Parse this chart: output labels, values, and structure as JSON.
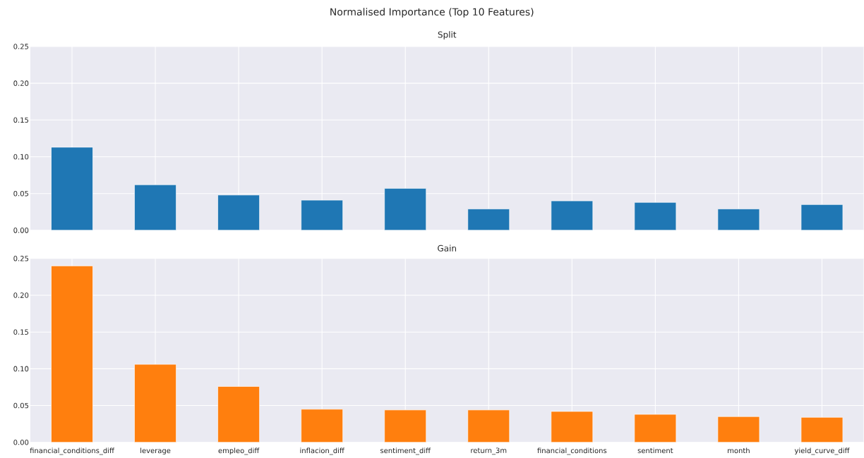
{
  "chart_data": [
    {
      "type": "bar",
      "title": "Split",
      "annotations": [
        "Normalised Importance (Top 10 Features)"
      ],
      "categories": [
        null,
        null,
        null,
        null,
        null,
        null,
        null,
        null,
        null,
        null
      ],
      "values": [
        0.113,
        0.062,
        0.048,
        0.041,
        0.057,
        0.029,
        0.04,
        0.038,
        0.029,
        0.035
      ],
      "color": "#1f77b4",
      "ylim": [
        0,
        0.25
      ],
      "yticks": [
        {
          "value": 0,
          "label": "0.00"
        },
        {
          "value": 0.05,
          "label": "0.05"
        },
        {
          "value": 0.1,
          "label": "0.10"
        },
        {
          "value": 0.15,
          "label": "0.15"
        },
        {
          "value": 0.2,
          "label": "0.20"
        },
        {
          "value": 0.25,
          "label": "0.25"
        }
      ],
      "grid": true,
      "tick_labels": "y"
    },
    {
      "type": "bar",
      "title": "Gain",
      "categories": [
        "financial_conditions_diff",
        "leverage",
        "empleo_diff",
        "inflacion_diff",
        "sentiment_diff",
        "return_3m",
        "financial_conditions",
        "sentiment",
        "month",
        "yield_curve_diff"
      ],
      "values": [
        0.24,
        0.106,
        0.076,
        0.045,
        0.044,
        0.044,
        0.042,
        0.038,
        0.035,
        0.034
      ],
      "color": "#ff7f0e",
      "ylim": [
        0,
        0.25
      ],
      "yticks": [
        {
          "value": 0,
          "label": "0.00"
        },
        {
          "value": 0.05,
          "label": "0.05"
        },
        {
          "value": 0.1,
          "label": "0.10"
        },
        {
          "value": 0.15,
          "label": "0.15"
        },
        {
          "value": 0.2,
          "label": "0.20"
        },
        {
          "value": 0.25,
          "label": "0.25"
        }
      ],
      "grid": true
    }
  ]
}
